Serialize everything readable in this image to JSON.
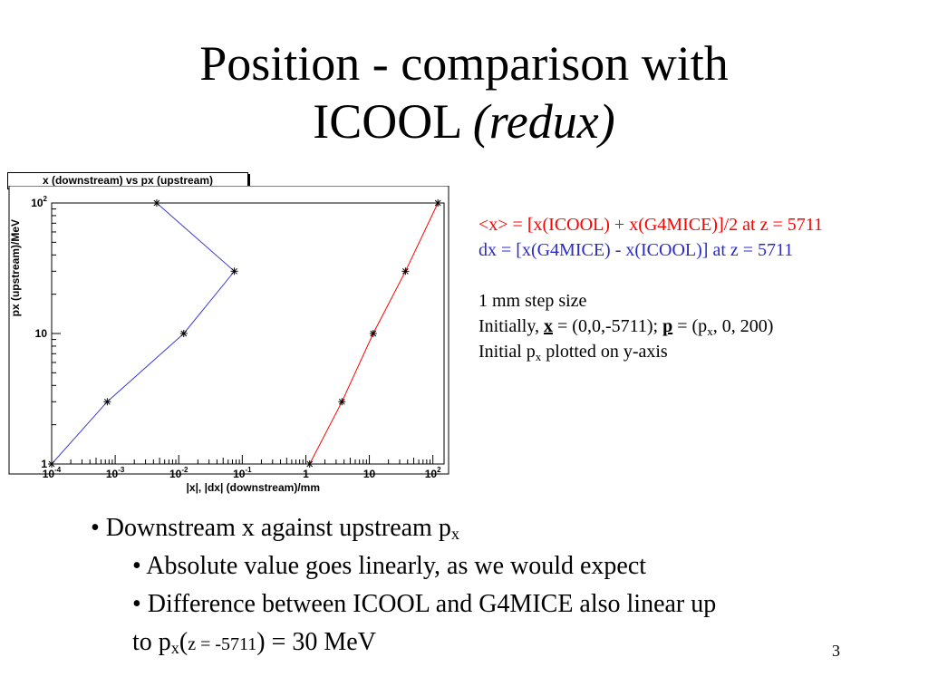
{
  "slide": {
    "title_main": "Position - comparison with",
    "title_line2_plain": "ICOOL",
    "title_line2_italic": "(redux)",
    "page_number": "3"
  },
  "notes": {
    "line_red": "<x> = [x(ICOOL) + x(G4MICE)]/2 at z = 5711",
    "line_blue": "dx = [x(G4MICE) - x(ICOOL)] at z = 5711",
    "step": "1 mm step size",
    "initially_prefix": "Initially, ",
    "x_bold": "x",
    "initially_mid": " = (0,0,-5711); ",
    "p_bold": "p",
    "initially_eq": " = (p",
    "initially_sub": "x",
    "initially_suffix": ", 0, 200)",
    "initial_p_prefix": "Initial p",
    "initial_p_sub": "x",
    "initial_p_suffix": " plotted on y-axis"
  },
  "bullets": {
    "b1_prefix": "• Downstream x against upstream p",
    "b1_sub": "x",
    "b2": "• Absolute value goes linearly, as we would expect",
    "b3": "• Difference between ICOOL and G4MICE also linear up",
    "b4_prefix": "to p",
    "b4_sub": "x",
    "b4_paren_open": "(",
    "b4_small": "z = -5711",
    "b4_suffix": ") = 30 MeV"
  },
  "chart_data": {
    "type": "line",
    "title": "x (downstream) vs px (upstream)",
    "xlabel": "|x|, |dx| (downstream)/mm",
    "ylabel": "px (upstream)/MeV",
    "xscale": "log",
    "yscale": "log",
    "xlim": [
      0.0001,
      150
    ],
    "ylim": [
      1,
      100
    ],
    "x_ticks": [
      {
        "value": 0.0001,
        "base": "10",
        "exp": "-4"
      },
      {
        "value": 0.001,
        "base": "10",
        "exp": "-3"
      },
      {
        "value": 0.01,
        "base": "10",
        "exp": "-2"
      },
      {
        "value": 0.1,
        "base": "10",
        "exp": "-1"
      },
      {
        "value": 1,
        "base": "1",
        "exp": ""
      },
      {
        "value": 10,
        "base": "10",
        "exp": ""
      },
      {
        "value": 100,
        "base": "10",
        "exp": "2"
      }
    ],
    "y_ticks": [
      {
        "value": 1,
        "base": "1",
        "exp": ""
      },
      {
        "value": 10,
        "base": "10",
        "exp": ""
      },
      {
        "value": 100,
        "base": "10",
        "exp": "2"
      }
    ],
    "series": [
      {
        "color": "#3a3ad6",
        "points": [
          [
            0.0001,
            1
          ],
          [
            0.00075,
            3
          ],
          [
            0.012,
            10
          ],
          [
            0.075,
            30
          ],
          [
            0.0045,
            100
          ]
        ]
      },
      {
        "color": "#ff0000",
        "points": [
          [
            1.15,
            1
          ],
          [
            3.7,
            3
          ],
          [
            11.5,
            10
          ],
          [
            37,
            30
          ],
          [
            120,
            100
          ]
        ]
      }
    ],
    "marker": "asterisk",
    "grid": false
  }
}
